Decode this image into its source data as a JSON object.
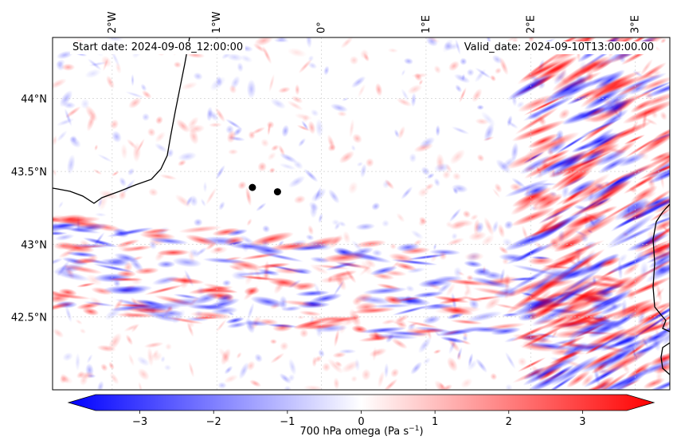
{
  "map": {
    "start_label": "Start date: 2024-09-08_12:00:00",
    "valid_label": "Valid_date: 2024-09-10T13:00:00.00",
    "lon_ticks": [
      {
        "label": "2°W",
        "lon": -2
      },
      {
        "label": "1°W",
        "lon": -1
      },
      {
        "label": "0°",
        "lon": 0
      },
      {
        "label": "1°E",
        "lon": 1
      },
      {
        "label": "2°E",
        "lon": 2
      },
      {
        "label": "3°E",
        "lon": 3
      }
    ],
    "lat_ticks": [
      {
        "label": "44°N",
        "lat": 44.0
      },
      {
        "label": "43.5°N",
        "lat": 43.5
      },
      {
        "label": "43°N",
        "lat": 43.0
      },
      {
        "label": "42.5°N",
        "lat": 42.5
      }
    ],
    "extent": {
      "lon_min": -2.57,
      "lon_max": 3.33,
      "lat_min": 42.0,
      "lat_max": 44.42
    },
    "markers": [
      {
        "name": "point-1",
        "lon": -0.66,
        "lat": 43.39
      },
      {
        "name": "point-2",
        "lon": -0.42,
        "lat": 43.36
      }
    ]
  },
  "chart_data": {
    "type": "heatmap",
    "variable": "700 hPa omega",
    "units": "Pa s^-1",
    "colormap": "bwr",
    "vmin": -3.6,
    "vmax": 3.6,
    "colorbar_ticks": [
      -3,
      -2,
      -1,
      0,
      1,
      2,
      3
    ],
    "colorbar_tick_labels": [
      "−3",
      "−2",
      "−1",
      "0",
      "1",
      "2",
      "3"
    ],
    "colorbar_label_main": "700 hPa omega (Pa s",
    "colorbar_label_exp": "−1",
    "colorbar_label_close": ")",
    "extend": "both"
  },
  "colors": {
    "negative": "#0000ff",
    "zero": "#ffffff",
    "positive": "#ff0000",
    "coast": "#000000",
    "marker": "#000000",
    "grid": "#c8c8c8"
  }
}
